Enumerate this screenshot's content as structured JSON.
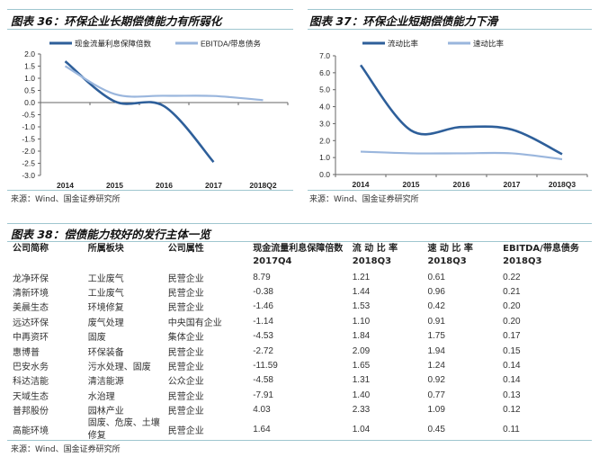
{
  "chart_data": [
    {
      "type": "line",
      "title": "图表 36：环保企业长期偿债能力有所弱化",
      "categories": [
        "2014",
        "2015",
        "2016",
        "2017",
        "2018Q2"
      ],
      "series": [
        {
          "name": "现金流量利息保障倍数",
          "color": "#2e5f9a",
          "values": [
            1.7,
            0.05,
            -0.15,
            -2.45,
            null
          ]
        },
        {
          "name": "EBITDA/带息债务",
          "color": "#9ab6dd",
          "values": [
            1.5,
            0.35,
            0.28,
            0.27,
            0.1
          ]
        }
      ],
      "ylim": [
        -3.0,
        2.0
      ],
      "yticks": [
        "2.0",
        "1.5",
        "1.0",
        "0.5",
        "0.0",
        "-0.5",
        "-1.0",
        "-1.5",
        "-2.0",
        "-2.5",
        "-3.0"
      ],
      "legend": "top",
      "grid": false,
      "source": "来源：Wind、国金证券研究所"
    },
    {
      "type": "line",
      "title": "图表 37：环保企业短期偿债能力下滑",
      "categories": [
        "2014",
        "2015",
        "2016",
        "2017",
        "2018Q3"
      ],
      "series": [
        {
          "name": "流动比率",
          "color": "#2e5f9a",
          "values": [
            6.45,
            2.6,
            2.8,
            2.65,
            1.2
          ]
        },
        {
          "name": "速动比率",
          "color": "#9ab6dd",
          "values": [
            1.35,
            1.25,
            1.25,
            1.25,
            0.9
          ]
        }
      ],
      "ylim": [
        0,
        7.0
      ],
      "yticks": [
        "7.0",
        "6.0",
        "5.0",
        "4.0",
        "3.0",
        "2.0",
        "1.0",
        "0.0"
      ],
      "legend": "top",
      "grid": false,
      "source": "来源：Wind、国金证券研究所"
    }
  ],
  "table": {
    "title": "图表 38：偿债能力较好的发行主体一览",
    "headers": [
      "公司简称",
      "所属板块",
      "公司属性",
      "现金流量利息保障倍数 2017Q4",
      "流 动 比 率 2018Q3",
      "速 动 比 率 2018Q3",
      "EBITDA/带息债务 2018Q3"
    ],
    "rows": [
      [
        "龙净环保",
        "工业废气",
        "民营企业",
        "8.79",
        "1.21",
        "0.61",
        "0.22"
      ],
      [
        "清新环境",
        "工业废气",
        "民营企业",
        "-0.38",
        "1.44",
        "0.96",
        "0.21"
      ],
      [
        "美晨生态",
        "环境修复",
        "民营企业",
        "-1.46",
        "1.53",
        "0.42",
        "0.20"
      ],
      [
        "远达环保",
        "废气处理",
        "中央国有企业",
        "-1.14",
        "1.10",
        "0.91",
        "0.20"
      ],
      [
        "中再资环",
        "固废",
        "集体企业",
        "-4.53",
        "1.84",
        "1.75",
        "0.17"
      ],
      [
        "惠博普",
        "环保装备",
        "民营企业",
        "-2.72",
        "2.09",
        "1.94",
        "0.15"
      ],
      [
        "巴安水务",
        "污水处理、固废",
        "民营企业",
        "-11.59",
        "1.65",
        "1.24",
        "0.14"
      ],
      [
        "科达洁能",
        "清洁能源",
        "公众企业",
        "-4.58",
        "1.31",
        "0.92",
        "0.14"
      ],
      [
        "天域生态",
        "水治理",
        "民营企业",
        "-7.91",
        "1.40",
        "0.77",
        "0.13"
      ],
      [
        "普邦股份",
        "园林产业",
        "民营企业",
        "4.03",
        "2.33",
        "1.09",
        "0.12"
      ],
      [
        "高能环境",
        "固废、危废、土壤修复",
        "民营企业",
        "1.64",
        "1.04",
        "0.45",
        "0.11"
      ]
    ],
    "source": "来源：Wind、国金证券研究所"
  }
}
